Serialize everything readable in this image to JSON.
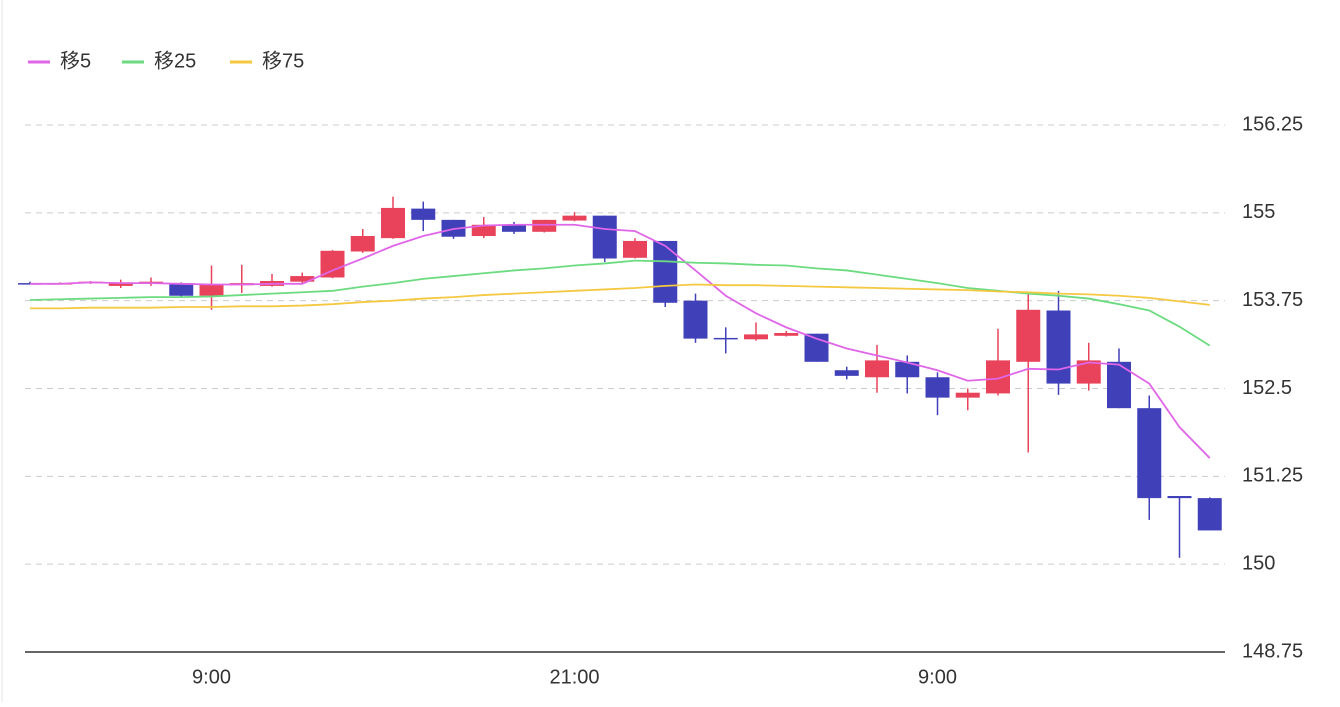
{
  "chart_data": {
    "type": "candlestick",
    "categories": [
      null,
      null,
      null,
      null,
      null,
      null,
      "9:00",
      null,
      null,
      null,
      null,
      null,
      null,
      null,
      null,
      null,
      null,
      null,
      "21:00",
      null,
      null,
      null,
      null,
      null,
      null,
      null,
      null,
      null,
      null,
      null,
      "9:00",
      null,
      null,
      null,
      null,
      null,
      null,
      null,
      null,
      null
    ],
    "open": [
      154.0,
      153.99,
      154.0,
      153.96,
      153.99,
      154.0,
      153.82,
      153.97,
      153.96,
      154.02,
      154.08,
      154.45,
      154.64,
      155.06,
      154.9,
      154.67,
      154.83,
      154.73,
      154.89,
      154.96,
      154.36,
      154.6,
      153.75,
      153.22,
      153.2,
      153.25,
      153.28,
      152.76,
      152.66,
      152.88,
      152.66,
      152.37,
      152.43,
      152.88,
      153.61,
      152.57,
      152.88,
      152.22,
      150.97,
      150.94
    ],
    "high": [
      154.02,
      154.01,
      154.03,
      154.05,
      154.08,
      154.01,
      154.25,
      154.26,
      154.13,
      154.15,
      154.47,
      154.77,
      155.23,
      155.16,
      154.9,
      154.94,
      154.87,
      154.9,
      155.01,
      154.96,
      154.64,
      154.6,
      153.85,
      153.37,
      153.44,
      153.32,
      153.28,
      152.81,
      153.12,
      152.97,
      152.73,
      152.5,
      153.35,
      153.85,
      153.89,
      153.15,
      153.07,
      152.4,
      150.97,
      150.95
    ],
    "low": [
      153.98,
      153.98,
      153.99,
      153.93,
      153.96,
      153.79,
      153.62,
      153.86,
      153.95,
      154.0,
      154.07,
      154.43,
      154.63,
      154.74,
      154.63,
      154.64,
      154.7,
      154.72,
      154.88,
      154.3,
      154.35,
      153.66,
      153.15,
      153.0,
      153.18,
      153.24,
      152.88,
      152.63,
      152.44,
      152.43,
      152.12,
      152.19,
      152.4,
      151.59,
      152.41,
      152.47,
      152.22,
      150.63,
      150.09,
      150.48
    ],
    "close": [
      153.98,
      154.0,
      154.02,
      154.01,
      154.02,
      153.82,
      153.98,
      154.0,
      154.03,
      154.1,
      154.46,
      154.67,
      155.07,
      154.9,
      154.66,
      154.83,
      154.73,
      154.9,
      154.96,
      154.35,
      154.6,
      153.72,
      153.21,
      153.2,
      153.27,
      153.29,
      152.88,
      152.68,
      152.9,
      152.66,
      152.37,
      152.44,
      152.9,
      153.62,
      152.57,
      152.9,
      152.22,
      150.94,
      150.94,
      150.48
    ],
    "up_color": "#e8435a",
    "down_color": "#4040b8",
    "series": [
      {
        "name": "移5",
        "color": "#e066e8",
        "values": [
          153.99,
          153.99,
          154.01,
          154.0,
          154.0,
          153.99,
          153.98,
          153.98,
          153.99,
          153.99,
          154.18,
          154.35,
          154.53,
          154.67,
          154.77,
          154.82,
          154.83,
          154.83,
          154.83,
          154.77,
          154.74,
          154.53,
          154.18,
          153.82,
          153.57,
          153.37,
          153.21,
          153.07,
          152.97,
          152.87,
          152.76,
          152.61,
          152.64,
          152.78,
          152.77,
          152.87,
          152.84,
          152.57,
          151.95,
          151.51
        ]
      },
      {
        "name": "移25",
        "color": "#6cdb80",
        "values": [
          153.76,
          153.77,
          153.78,
          153.79,
          153.8,
          153.8,
          153.81,
          153.83,
          153.85,
          153.87,
          153.89,
          153.95,
          154.0,
          154.06,
          154.1,
          154.14,
          154.18,
          154.21,
          154.25,
          154.28,
          154.32,
          154.31,
          154.29,
          154.28,
          154.26,
          154.25,
          154.21,
          154.18,
          154.12,
          154.06,
          154.0,
          153.93,
          153.89,
          153.85,
          153.82,
          153.78,
          153.7,
          153.61,
          153.38,
          153.11
        ]
      },
      {
        "name": "移75",
        "color": "#f5c842",
        "values": [
          153.64,
          153.64,
          153.65,
          153.65,
          153.65,
          153.66,
          153.66,
          153.67,
          153.67,
          153.68,
          153.7,
          153.73,
          153.75,
          153.78,
          153.8,
          153.83,
          153.85,
          153.87,
          153.89,
          153.91,
          153.93,
          153.96,
          153.98,
          153.97,
          153.97,
          153.96,
          153.95,
          153.94,
          153.93,
          153.92,
          153.91,
          153.9,
          153.88,
          153.87,
          153.85,
          153.84,
          153.82,
          153.79,
          153.74,
          153.69
        ]
      }
    ],
    "ylim": [
      148.75,
      156.25
    ],
    "yticks": [
      148.75,
      150,
      151.25,
      152.5,
      153.75,
      155,
      156.25
    ],
    "grid": true,
    "legend": "top-left"
  }
}
